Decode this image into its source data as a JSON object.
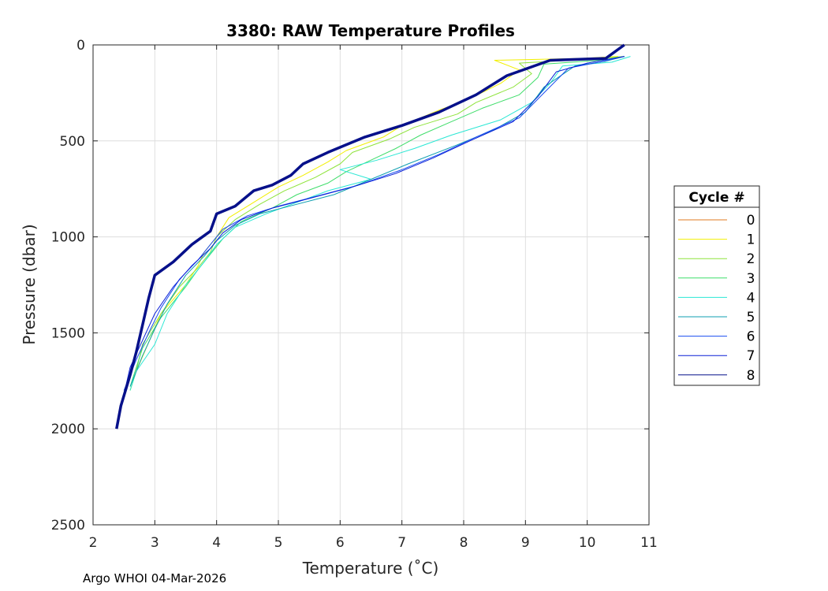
{
  "chart_data": {
    "type": "line",
    "title": "3380: RAW Temperature Profiles",
    "xlabel": "Temperature (˚C)",
    "ylabel": "Pressure (dbar)",
    "xlim": [
      2,
      11
    ],
    "ylim": [
      0,
      2500
    ],
    "y_reversed": true,
    "grid": true,
    "xticks": [
      2,
      3,
      4,
      5,
      6,
      7,
      8,
      9,
      10,
      11
    ],
    "yticks": [
      0,
      500,
      1000,
      1500,
      2000,
      2500
    ],
    "legend": {
      "title": "Cycle #",
      "placement": "outside-right"
    },
    "series": [
      {
        "name": "0",
        "color": "#e07a1f",
        "width": 1,
        "temperature": [],
        "pressure": []
      },
      {
        "name": "1",
        "color": "#f2ef00",
        "width": 1,
        "temperature": [
          10.5,
          9.9,
          8.5,
          8.9,
          8.6,
          8.1,
          7.6,
          7.0,
          6.7,
          6.1,
          5.8,
          5.4,
          5.0,
          4.6,
          4.2,
          4.0,
          3.8,
          3.7,
          3.5,
          3.1,
          2.9,
          2.7,
          2.6
        ],
        "pressure": [
          60,
          70,
          80,
          130,
          200,
          280,
          340,
          420,
          480,
          550,
          610,
          680,
          740,
          820,
          900,
          1000,
          1080,
          1150,
          1250,
          1400,
          1550,
          1700,
          1800
        ]
      },
      {
        "name": "2",
        "color": "#8ee33a",
        "width": 1,
        "temperature": [
          10.6,
          10.0,
          8.9,
          9.1,
          8.8,
          8.2,
          7.9,
          7.2,
          6.8,
          6.2,
          6.0,
          5.6,
          5.1,
          4.7,
          4.3,
          4.0,
          3.9,
          3.7,
          3.4,
          3.1,
          2.8,
          2.7,
          2.6
        ],
        "pressure": [
          60,
          75,
          95,
          150,
          220,
          300,
          360,
          430,
          490,
          560,
          620,
          690,
          760,
          830,
          910,
          1000,
          1080,
          1160,
          1260,
          1400,
          1560,
          1700,
          1800
        ]
      },
      {
        "name": "3",
        "color": "#3fdd6a",
        "width": 1,
        "temperature": [
          10.6,
          10.2,
          9.3,
          9.2,
          8.9,
          8.3,
          7.8,
          7.3,
          6.9,
          6.5,
          6.1,
          5.8,
          5.3,
          4.9,
          4.4,
          4.1,
          3.9,
          3.7,
          3.5,
          3.1,
          2.8,
          2.6
        ],
        "pressure": [
          60,
          80,
          100,
          170,
          260,
          330,
          400,
          470,
          540,
          600,
          660,
          720,
          780,
          850,
          920,
          1010,
          1090,
          1170,
          1260,
          1420,
          1580,
          1780
        ]
      },
      {
        "name": "4",
        "color": "#2ae7d4",
        "width": 1,
        "temperature": [
          10.7,
          10.4,
          9.6,
          9.4,
          9.1,
          8.6,
          7.8,
          7.2,
          6.6,
          6.0,
          6.5,
          5.8,
          5.3,
          4.8,
          4.3,
          4.0,
          3.8,
          3.5,
          3.2,
          3.0,
          2.7,
          2.6
        ],
        "pressure": [
          60,
          90,
          110,
          200,
          300,
          390,
          470,
          540,
          600,
          650,
          700,
          760,
          820,
          880,
          950,
          1040,
          1130,
          1250,
          1400,
          1560,
          1700,
          1800
        ]
      },
      {
        "name": "5",
        "color": "#0f9fb0",
        "width": 1,
        "temperature": [
          10.6,
          10.3,
          9.8,
          9.3,
          9.0,
          8.5,
          7.9,
          7.1,
          6.5,
          5.9,
          5.3,
          4.7,
          4.3,
          4.0,
          3.8,
          3.5,
          3.2,
          3.0,
          2.8,
          2.6
        ],
        "pressure": [
          60,
          85,
          110,
          220,
          350,
          440,
          520,
          620,
          700,
          780,
          830,
          880,
          940,
          1020,
          1100,
          1200,
          1350,
          1480,
          1620,
          1780
        ]
      },
      {
        "name": "6",
        "color": "#1a4cf0",
        "width": 1,
        "temperature": [
          10.6,
          10.2,
          9.7,
          9.3,
          8.9,
          8.2,
          7.6,
          7.0,
          6.3,
          5.6,
          5.0,
          4.5,
          4.1,
          3.9,
          3.7,
          3.4,
          3.1,
          2.9,
          2.7,
          2.5
        ],
        "pressure": [
          60,
          90,
          120,
          250,
          380,
          480,
          570,
          650,
          730,
          790,
          840,
          890,
          960,
          1040,
          1120,
          1220,
          1370,
          1500,
          1640,
          1800
        ]
      },
      {
        "name": "7",
        "color": "#0a1fd6",
        "width": 1,
        "temperature": [
          10.6,
          10.0,
          9.5,
          9.2,
          8.8,
          8.1,
          7.5,
          6.9,
          6.2,
          5.5,
          4.9,
          4.4,
          4.1,
          3.9,
          3.6,
          3.3,
          3.0,
          2.8,
          2.6,
          2.5
        ],
        "pressure": [
          60,
          95,
          140,
          270,
          400,
          500,
          590,
          670,
          740,
          800,
          850,
          910,
          980,
          1060,
          1150,
          1260,
          1400,
          1540,
          1680,
          1820
        ]
      },
      {
        "name": "8",
        "color": "#06108a",
        "width": 3.5,
        "temperature": [
          10.6,
          10.3,
          9.4,
          8.7,
          8.2,
          7.6,
          7.0,
          6.4,
          5.8,
          5.4,
          5.2,
          4.9,
          4.6,
          4.3,
          4.0,
          3.9,
          3.6,
          3.3,
          3.0,
          2.9,
          2.8,
          2.7,
          2.6,
          2.45,
          2.38
        ],
        "pressure": [
          0,
          70,
          80,
          160,
          260,
          350,
          420,
          480,
          560,
          620,
          680,
          730,
          760,
          840,
          880,
          970,
          1040,
          1130,
          1200,
          1320,
          1460,
          1600,
          1720,
          1880,
          2000
        ]
      }
    ]
  },
  "footer": {
    "text": "Argo WHOI 04-Mar-2026"
  }
}
